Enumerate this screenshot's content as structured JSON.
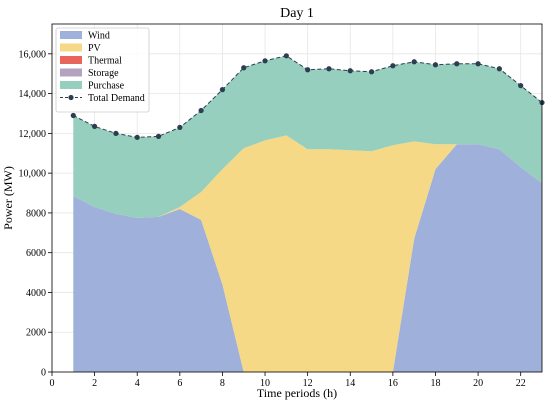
{
  "chart_data": {
    "type": "area",
    "title": "Day 1",
    "xlabel": "Time periods (h)",
    "ylabel": "Power (MW)",
    "xlim": [
      0,
      23
    ],
    "ylim": [
      0,
      17500
    ],
    "xticks": [
      0,
      2,
      4,
      6,
      8,
      10,
      12,
      14,
      16,
      18,
      20,
      22
    ],
    "yticks": [
      0,
      2000,
      4000,
      6000,
      8000,
      10000,
      12000,
      14000,
      16000
    ],
    "ytick_labels": [
      "0",
      "2000",
      "4000",
      "6000",
      "8000",
      "10,000",
      "12,000",
      "14,000",
      "16,000"
    ],
    "grid": true,
    "legend_position": "top-left",
    "x": [
      1,
      2,
      3,
      4,
      5,
      6,
      7,
      8,
      9,
      10,
      11,
      12,
      13,
      14,
      15,
      16,
      17,
      18,
      19,
      20,
      21,
      22,
      23
    ],
    "series": [
      {
        "name": "Wind",
        "kind": "stacked-area",
        "color": "#9fb1da",
        "values": [
          8850,
          8300,
          7950,
          7750,
          7800,
          8200,
          7650,
          4400,
          0,
          0,
          0,
          0,
          0,
          0,
          0,
          0,
          6700,
          10200,
          11450,
          11450,
          11200,
          10300,
          9500
        ]
      },
      {
        "name": "PV",
        "kind": "stacked-area",
        "color": "#f5d986",
        "values": [
          0,
          0,
          0,
          0,
          0,
          100,
          1400,
          5800,
          11250,
          11650,
          11900,
          11200,
          11200,
          11150,
          11100,
          11400,
          4900,
          1250,
          0,
          0,
          0,
          0,
          0
        ]
      },
      {
        "name": "Thermal",
        "kind": "stacked-area",
        "color": "#e8655d",
        "values": [
          0,
          0,
          0,
          0,
          0,
          0,
          0,
          0,
          0,
          0,
          0,
          0,
          0,
          0,
          0,
          0,
          0,
          0,
          0,
          0,
          0,
          0,
          0
        ]
      },
      {
        "name": "Storage",
        "kind": "stacked-area",
        "color": "#b3a2c0",
        "values": [
          0,
          0,
          0,
          0,
          0,
          0,
          0,
          0,
          0,
          0,
          0,
          0,
          0,
          0,
          0,
          0,
          0,
          0,
          0,
          0,
          0,
          0,
          0
        ]
      },
      {
        "name": "Purchase",
        "kind": "stacked-area",
        "color": "#96cfbe",
        "values": [
          4050,
          4050,
          4050,
          4050,
          4050,
          4000,
          4100,
          4000,
          4050,
          4000,
          4000,
          4000,
          4050,
          4000,
          4000,
          4000,
          4000,
          4000,
          4050,
          4050,
          4050,
          4100,
          4050
        ]
      },
      {
        "name": "Total Demand",
        "kind": "line",
        "color": "#2c3e50",
        "values": [
          12900,
          12350,
          12000,
          11800,
          11850,
          12300,
          13150,
          14200,
          15300,
          15650,
          15900,
          15200,
          15250,
          15150,
          15100,
          15400,
          15600,
          15450,
          15500,
          15500,
          15250,
          14400,
          13550
        ]
      }
    ]
  }
}
